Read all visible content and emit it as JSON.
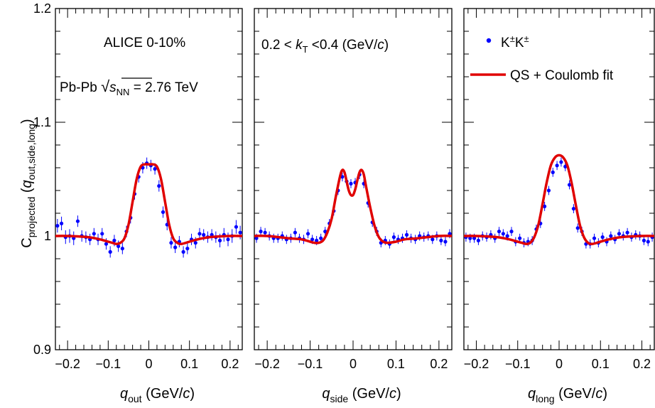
{
  "figure": {
    "ylabel_main": "C",
    "ylabel_sub": "projected",
    "ylabel_arg_open": " (",
    "ylabel_arg_var": "q",
    "ylabel_arg_sub": "out,side,long",
    "ylabel_arg_close": ")",
    "legend": {
      "marker_label_main": "K",
      "marker_label_sup1": "±",
      "marker_label_mid": "K",
      "marker_label_sup2": "±",
      "fit_label": "QS + Coulomb fit",
      "marker_color": "#0000ff",
      "fit_color": "#e00000"
    },
    "panel1_text": {
      "line1": "ALICE  0-10%",
      "line2_pre": "Pb-Pb ",
      "line2_var": "s",
      "line2_sub": "NN",
      "line2_post": " = 2.76 TeV"
    },
    "panel2_text": {
      "pre": "0.2 < ",
      "var": "k",
      "sub": "T",
      "post": " <0.4 (GeV/",
      "unit_var": "c",
      "close": ")"
    }
  },
  "chart_data": [
    {
      "type": "scatter",
      "xlabel_var": "q",
      "xlabel_sub": "out",
      "xlabel_unit_pre": " (GeV/",
      "xlabel_unit_var": "c",
      "xlabel_unit_post": ")",
      "xlim": [
        -0.23,
        0.23
      ],
      "ylim": [
        0.9,
        1.2
      ],
      "x_ticks": [
        -0.2,
        -0.1,
        0,
        0.1,
        0.2
      ],
      "x_tick_labels": [
        "−0.2",
        "−0.1",
        "0",
        "0.1",
        "0.2"
      ],
      "y_ticks": [
        0.9,
        1.0,
        1.1,
        1.2
      ],
      "y_tick_labels": [
        "0.9",
        "1",
        "1.1",
        "1.2"
      ],
      "points": [
        {
          "x": -0.225,
          "y": 1.009,
          "err": 0.006
        },
        {
          "x": -0.215,
          "y": 1.011,
          "err": 0.006
        },
        {
          "x": -0.205,
          "y": 0.999,
          "err": 0.006
        },
        {
          "x": -0.195,
          "y": 1.0,
          "err": 0.006
        },
        {
          "x": -0.185,
          "y": 0.998,
          "err": 0.006
        },
        {
          "x": -0.175,
          "y": 1.013,
          "err": 0.005
        },
        {
          "x": -0.165,
          "y": 1.0,
          "err": 0.005
        },
        {
          "x": -0.155,
          "y": 0.999,
          "err": 0.005
        },
        {
          "x": -0.145,
          "y": 0.997,
          "err": 0.005
        },
        {
          "x": -0.135,
          "y": 1.002,
          "err": 0.005
        },
        {
          "x": -0.125,
          "y": 0.997,
          "err": 0.005
        },
        {
          "x": -0.115,
          "y": 1.002,
          "err": 0.005
        },
        {
          "x": -0.105,
          "y": 0.993,
          "err": 0.005
        },
        {
          "x": -0.095,
          "y": 0.986,
          "err": 0.005
        },
        {
          "x": -0.085,
          "y": 0.996,
          "err": 0.005
        },
        {
          "x": -0.075,
          "y": 0.991,
          "err": 0.005
        },
        {
          "x": -0.065,
          "y": 0.989,
          "err": 0.005
        },
        {
          "x": -0.055,
          "y": 1.004,
          "err": 0.005
        },
        {
          "x": -0.045,
          "y": 1.016,
          "err": 0.005
        },
        {
          "x": -0.035,
          "y": 1.037,
          "err": 0.005
        },
        {
          "x": -0.025,
          "y": 1.052,
          "err": 0.005
        },
        {
          "x": -0.015,
          "y": 1.06,
          "err": 0.005
        },
        {
          "x": -0.005,
          "y": 1.064,
          "err": 0.005
        },
        {
          "x": 0.005,
          "y": 1.062,
          "err": 0.005
        },
        {
          "x": 0.015,
          "y": 1.059,
          "err": 0.005
        },
        {
          "x": 0.025,
          "y": 1.044,
          "err": 0.005
        },
        {
          "x": 0.035,
          "y": 1.021,
          "err": 0.005
        },
        {
          "x": 0.045,
          "y": 1.01,
          "err": 0.005
        },
        {
          "x": 0.055,
          "y": 0.994,
          "err": 0.005
        },
        {
          "x": 0.065,
          "y": 0.99,
          "err": 0.005
        },
        {
          "x": 0.075,
          "y": 0.995,
          "err": 0.005
        },
        {
          "x": 0.085,
          "y": 0.986,
          "err": 0.005
        },
        {
          "x": 0.095,
          "y": 0.989,
          "err": 0.005
        },
        {
          "x": 0.105,
          "y": 0.997,
          "err": 0.005
        },
        {
          "x": 0.115,
          "y": 0.994,
          "err": 0.005
        },
        {
          "x": 0.125,
          "y": 1.002,
          "err": 0.005
        },
        {
          "x": 0.135,
          "y": 1.001,
          "err": 0.005
        },
        {
          "x": 0.145,
          "y": 0.999,
          "err": 0.005
        },
        {
          "x": 0.155,
          "y": 1.001,
          "err": 0.005
        },
        {
          "x": 0.165,
          "y": 0.999,
          "err": 0.005
        },
        {
          "x": 0.175,
          "y": 0.996,
          "err": 0.006
        },
        {
          "x": 0.185,
          "y": 1.001,
          "err": 0.006
        },
        {
          "x": 0.195,
          "y": 0.997,
          "err": 0.006
        },
        {
          "x": 0.205,
          "y": 1.0,
          "err": 0.006
        },
        {
          "x": 0.215,
          "y": 1.008,
          "err": 0.006
        },
        {
          "x": 0.225,
          "y": 1.003,
          "err": 0.006
        }
      ],
      "fit": {
        "x": [
          -0.23,
          -0.2,
          -0.15,
          -0.12,
          -0.1,
          -0.09,
          -0.08,
          -0.07,
          -0.06,
          -0.05,
          -0.04,
          -0.03,
          -0.02,
          -0.01,
          0,
          0.01,
          0.02,
          0.03,
          0.04,
          0.05,
          0.06,
          0.07,
          0.08,
          0.1,
          0.12,
          0.15,
          0.2,
          0.23
        ],
        "y": [
          1.0,
          1.0,
          0.999,
          0.997,
          0.995,
          0.994,
          0.993,
          0.994,
          0.998,
          1.01,
          1.03,
          1.05,
          1.061,
          1.063,
          1.063,
          1.063,
          1.061,
          1.05,
          1.03,
          1.01,
          0.998,
          0.994,
          0.993,
          0.995,
          0.997,
          0.999,
          1.0,
          1.0
        ]
      }
    },
    {
      "type": "scatter",
      "xlabel_var": "q",
      "xlabel_sub": "side",
      "xlabel_unit_pre": " (GeV/",
      "xlabel_unit_var": "c",
      "xlabel_unit_post": ")",
      "xlim": [
        -0.23,
        0.23
      ],
      "ylim": [
        0.9,
        1.2
      ],
      "x_ticks": [
        -0.2,
        -0.1,
        0,
        0.1,
        0.2
      ],
      "x_tick_labels": [
        "−0.2",
        "−0.1",
        "0",
        "0.1",
        "0.2"
      ],
      "y_ticks": [
        0.9,
        1.0,
        1.1,
        1.2
      ],
      "points": [
        {
          "x": -0.225,
          "y": 0.998,
          "err": 0.004
        },
        {
          "x": -0.215,
          "y": 1.004,
          "err": 0.004
        },
        {
          "x": -0.205,
          "y": 1.003,
          "err": 0.004
        },
        {
          "x": -0.195,
          "y": 1.0,
          "err": 0.004
        },
        {
          "x": -0.185,
          "y": 0.998,
          "err": 0.004
        },
        {
          "x": -0.175,
          "y": 0.998,
          "err": 0.004
        },
        {
          "x": -0.165,
          "y": 1.0,
          "err": 0.004
        },
        {
          "x": -0.155,
          "y": 0.997,
          "err": 0.004
        },
        {
          "x": -0.145,
          "y": 0.998,
          "err": 0.004
        },
        {
          "x": -0.135,
          "y": 1.003,
          "err": 0.004
        },
        {
          "x": -0.125,
          "y": 0.998,
          "err": 0.004
        },
        {
          "x": -0.115,
          "y": 0.997,
          "err": 0.004
        },
        {
          "x": -0.105,
          "y": 1.002,
          "err": 0.004
        },
        {
          "x": -0.095,
          "y": 0.997,
          "err": 0.004
        },
        {
          "x": -0.085,
          "y": 0.996,
          "err": 0.004
        },
        {
          "x": -0.075,
          "y": 0.998,
          "err": 0.004
        },
        {
          "x": -0.065,
          "y": 1.004,
          "err": 0.004
        },
        {
          "x": -0.055,
          "y": 1.011,
          "err": 0.004
        },
        {
          "x": -0.045,
          "y": 1.022,
          "err": 0.004
        },
        {
          "x": -0.035,
          "y": 1.04,
          "err": 0.004
        },
        {
          "x": -0.025,
          "y": 1.052,
          "err": 0.004
        },
        {
          "x": -0.015,
          "y": 1.048,
          "err": 0.004
        },
        {
          "x": -0.005,
          "y": 1.046,
          "err": 0.004
        },
        {
          "x": 0.005,
          "y": 1.047,
          "err": 0.004
        },
        {
          "x": 0.015,
          "y": 1.054,
          "err": 0.004
        },
        {
          "x": 0.025,
          "y": 1.046,
          "err": 0.004
        },
        {
          "x": 0.035,
          "y": 1.029,
          "err": 0.004
        },
        {
          "x": 0.045,
          "y": 1.012,
          "err": 0.004
        },
        {
          "x": 0.055,
          "y": 1.004,
          "err": 0.004
        },
        {
          "x": 0.065,
          "y": 0.994,
          "err": 0.004
        },
        {
          "x": 0.075,
          "y": 0.996,
          "err": 0.004
        },
        {
          "x": 0.085,
          "y": 0.993,
          "err": 0.004
        },
        {
          "x": 0.095,
          "y": 0.999,
          "err": 0.004
        },
        {
          "x": 0.105,
          "y": 0.997,
          "err": 0.004
        },
        {
          "x": 0.115,
          "y": 0.998,
          "err": 0.004
        },
        {
          "x": 0.125,
          "y": 1.001,
          "err": 0.004
        },
        {
          "x": 0.135,
          "y": 0.998,
          "err": 0.004
        },
        {
          "x": 0.145,
          "y": 0.997,
          "err": 0.004
        },
        {
          "x": 0.155,
          "y": 1.0,
          "err": 0.004
        },
        {
          "x": 0.165,
          "y": 0.999,
          "err": 0.004
        },
        {
          "x": 0.175,
          "y": 1.0,
          "err": 0.004
        },
        {
          "x": 0.185,
          "y": 0.997,
          "err": 0.004
        },
        {
          "x": 0.195,
          "y": 1.0,
          "err": 0.004
        },
        {
          "x": 0.205,
          "y": 0.996,
          "err": 0.004
        },
        {
          "x": 0.215,
          "y": 0.995,
          "err": 0.004
        },
        {
          "x": 0.225,
          "y": 1.002,
          "err": 0.004
        }
      ],
      "fit": {
        "x": [
          -0.23,
          -0.2,
          -0.15,
          -0.12,
          -0.1,
          -0.09,
          -0.08,
          -0.07,
          -0.06,
          -0.05,
          -0.04,
          -0.03,
          -0.025,
          -0.02,
          -0.015,
          -0.01,
          -0.005,
          0,
          0.005,
          0.01,
          0.015,
          0.02,
          0.025,
          0.03,
          0.04,
          0.05,
          0.06,
          0.07,
          0.08,
          0.1,
          0.12,
          0.15,
          0.2,
          0.23
        ],
        "y": [
          1.0,
          1.0,
          0.998,
          0.997,
          0.995,
          0.994,
          0.994,
          0.996,
          1.003,
          1.015,
          1.035,
          1.053,
          1.058,
          1.056,
          1.048,
          1.04,
          1.036,
          1.036,
          1.041,
          1.049,
          1.056,
          1.058,
          1.054,
          1.044,
          1.025,
          1.009,
          0.999,
          0.995,
          0.994,
          0.995,
          0.997,
          0.998,
          1.0,
          1.0
        ]
      }
    },
    {
      "type": "scatter",
      "xlabel_var": "q",
      "xlabel_sub": "long",
      "xlabel_unit_pre": " (GeV/",
      "xlabel_unit_var": "c",
      "xlabel_unit_post": ")",
      "xlim": [
        -0.23,
        0.23
      ],
      "ylim": [
        0.9,
        1.2
      ],
      "x_ticks": [
        -0.2,
        -0.1,
        0,
        0.1,
        0.2
      ],
      "x_tick_labels": [
        "−0.2",
        "−0.1",
        "0",
        "0.1",
        "0.2"
      ],
      "y_ticks": [
        0.9,
        1.0,
        1.1,
        1.2
      ],
      "points": [
        {
          "x": -0.225,
          "y": 0.999,
          "err": 0.004
        },
        {
          "x": -0.215,
          "y": 0.998,
          "err": 0.004
        },
        {
          "x": -0.205,
          "y": 0.998,
          "err": 0.004
        },
        {
          "x": -0.195,
          "y": 0.996,
          "err": 0.004
        },
        {
          "x": -0.185,
          "y": 1.0,
          "err": 0.004
        },
        {
          "x": -0.175,
          "y": 0.999,
          "err": 0.004
        },
        {
          "x": -0.165,
          "y": 1.001,
          "err": 0.004
        },
        {
          "x": -0.155,
          "y": 0.998,
          "err": 0.004
        },
        {
          "x": -0.145,
          "y": 1.004,
          "err": 0.004
        },
        {
          "x": -0.135,
          "y": 1.002,
          "err": 0.004
        },
        {
          "x": -0.125,
          "y": 1.0,
          "err": 0.004
        },
        {
          "x": -0.115,
          "y": 1.004,
          "err": 0.004
        },
        {
          "x": -0.105,
          "y": 0.995,
          "err": 0.004
        },
        {
          "x": -0.095,
          "y": 0.998,
          "err": 0.004
        },
        {
          "x": -0.085,
          "y": 0.994,
          "err": 0.004
        },
        {
          "x": -0.075,
          "y": 0.995,
          "err": 0.004
        },
        {
          "x": -0.065,
          "y": 0.996,
          "err": 0.004
        },
        {
          "x": -0.055,
          "y": 1.006,
          "err": 0.004
        },
        {
          "x": -0.045,
          "y": 1.011,
          "err": 0.004
        },
        {
          "x": -0.035,
          "y": 1.026,
          "err": 0.004
        },
        {
          "x": -0.025,
          "y": 1.04,
          "err": 0.004
        },
        {
          "x": -0.015,
          "y": 1.056,
          "err": 0.004
        },
        {
          "x": -0.005,
          "y": 1.062,
          "err": 0.004
        },
        {
          "x": 0.005,
          "y": 1.065,
          "err": 0.004
        },
        {
          "x": 0.015,
          "y": 1.061,
          "err": 0.004
        },
        {
          "x": 0.025,
          "y": 1.045,
          "err": 0.004
        },
        {
          "x": 0.035,
          "y": 1.024,
          "err": 0.004
        },
        {
          "x": 0.045,
          "y": 1.007,
          "err": 0.004
        },
        {
          "x": 0.055,
          "y": 1.004,
          "err": 0.004
        },
        {
          "x": 0.065,
          "y": 0.993,
          "err": 0.004
        },
        {
          "x": 0.075,
          "y": 0.993,
          "err": 0.004
        },
        {
          "x": 0.085,
          "y": 0.998,
          "err": 0.004
        },
        {
          "x": 0.095,
          "y": 0.994,
          "err": 0.004
        },
        {
          "x": 0.105,
          "y": 0.999,
          "err": 0.004
        },
        {
          "x": 0.115,
          "y": 0.995,
          "err": 0.004
        },
        {
          "x": 0.125,
          "y": 1.0,
          "err": 0.004
        },
        {
          "x": 0.135,
          "y": 0.997,
          "err": 0.004
        },
        {
          "x": 0.145,
          "y": 1.002,
          "err": 0.004
        },
        {
          "x": 0.155,
          "y": 1.0,
          "err": 0.004
        },
        {
          "x": 0.165,
          "y": 1.003,
          "err": 0.004
        },
        {
          "x": 0.175,
          "y": 0.999,
          "err": 0.004
        },
        {
          "x": 0.185,
          "y": 1.001,
          "err": 0.004
        },
        {
          "x": 0.195,
          "y": 1.0,
          "err": 0.004
        },
        {
          "x": 0.205,
          "y": 0.996,
          "err": 0.004
        },
        {
          "x": 0.215,
          "y": 0.995,
          "err": 0.004
        },
        {
          "x": 0.225,
          "y": 0.999,
          "err": 0.004
        }
      ],
      "fit": {
        "x": [
          -0.23,
          -0.2,
          -0.15,
          -0.12,
          -0.1,
          -0.09,
          -0.08,
          -0.07,
          -0.06,
          -0.05,
          -0.04,
          -0.03,
          -0.02,
          -0.01,
          0,
          0.01,
          0.02,
          0.03,
          0.04,
          0.05,
          0.06,
          0.07,
          0.08,
          0.1,
          0.12,
          0.15,
          0.2,
          0.23
        ],
        "y": [
          1.0,
          1.0,
          0.999,
          0.997,
          0.995,
          0.994,
          0.993,
          0.994,
          0.999,
          1.01,
          1.028,
          1.047,
          1.062,
          1.069,
          1.071,
          1.069,
          1.062,
          1.047,
          1.028,
          1.01,
          0.999,
          0.994,
          0.993,
          0.995,
          0.997,
          0.999,
          1.0,
          1.0
        ]
      }
    }
  ]
}
